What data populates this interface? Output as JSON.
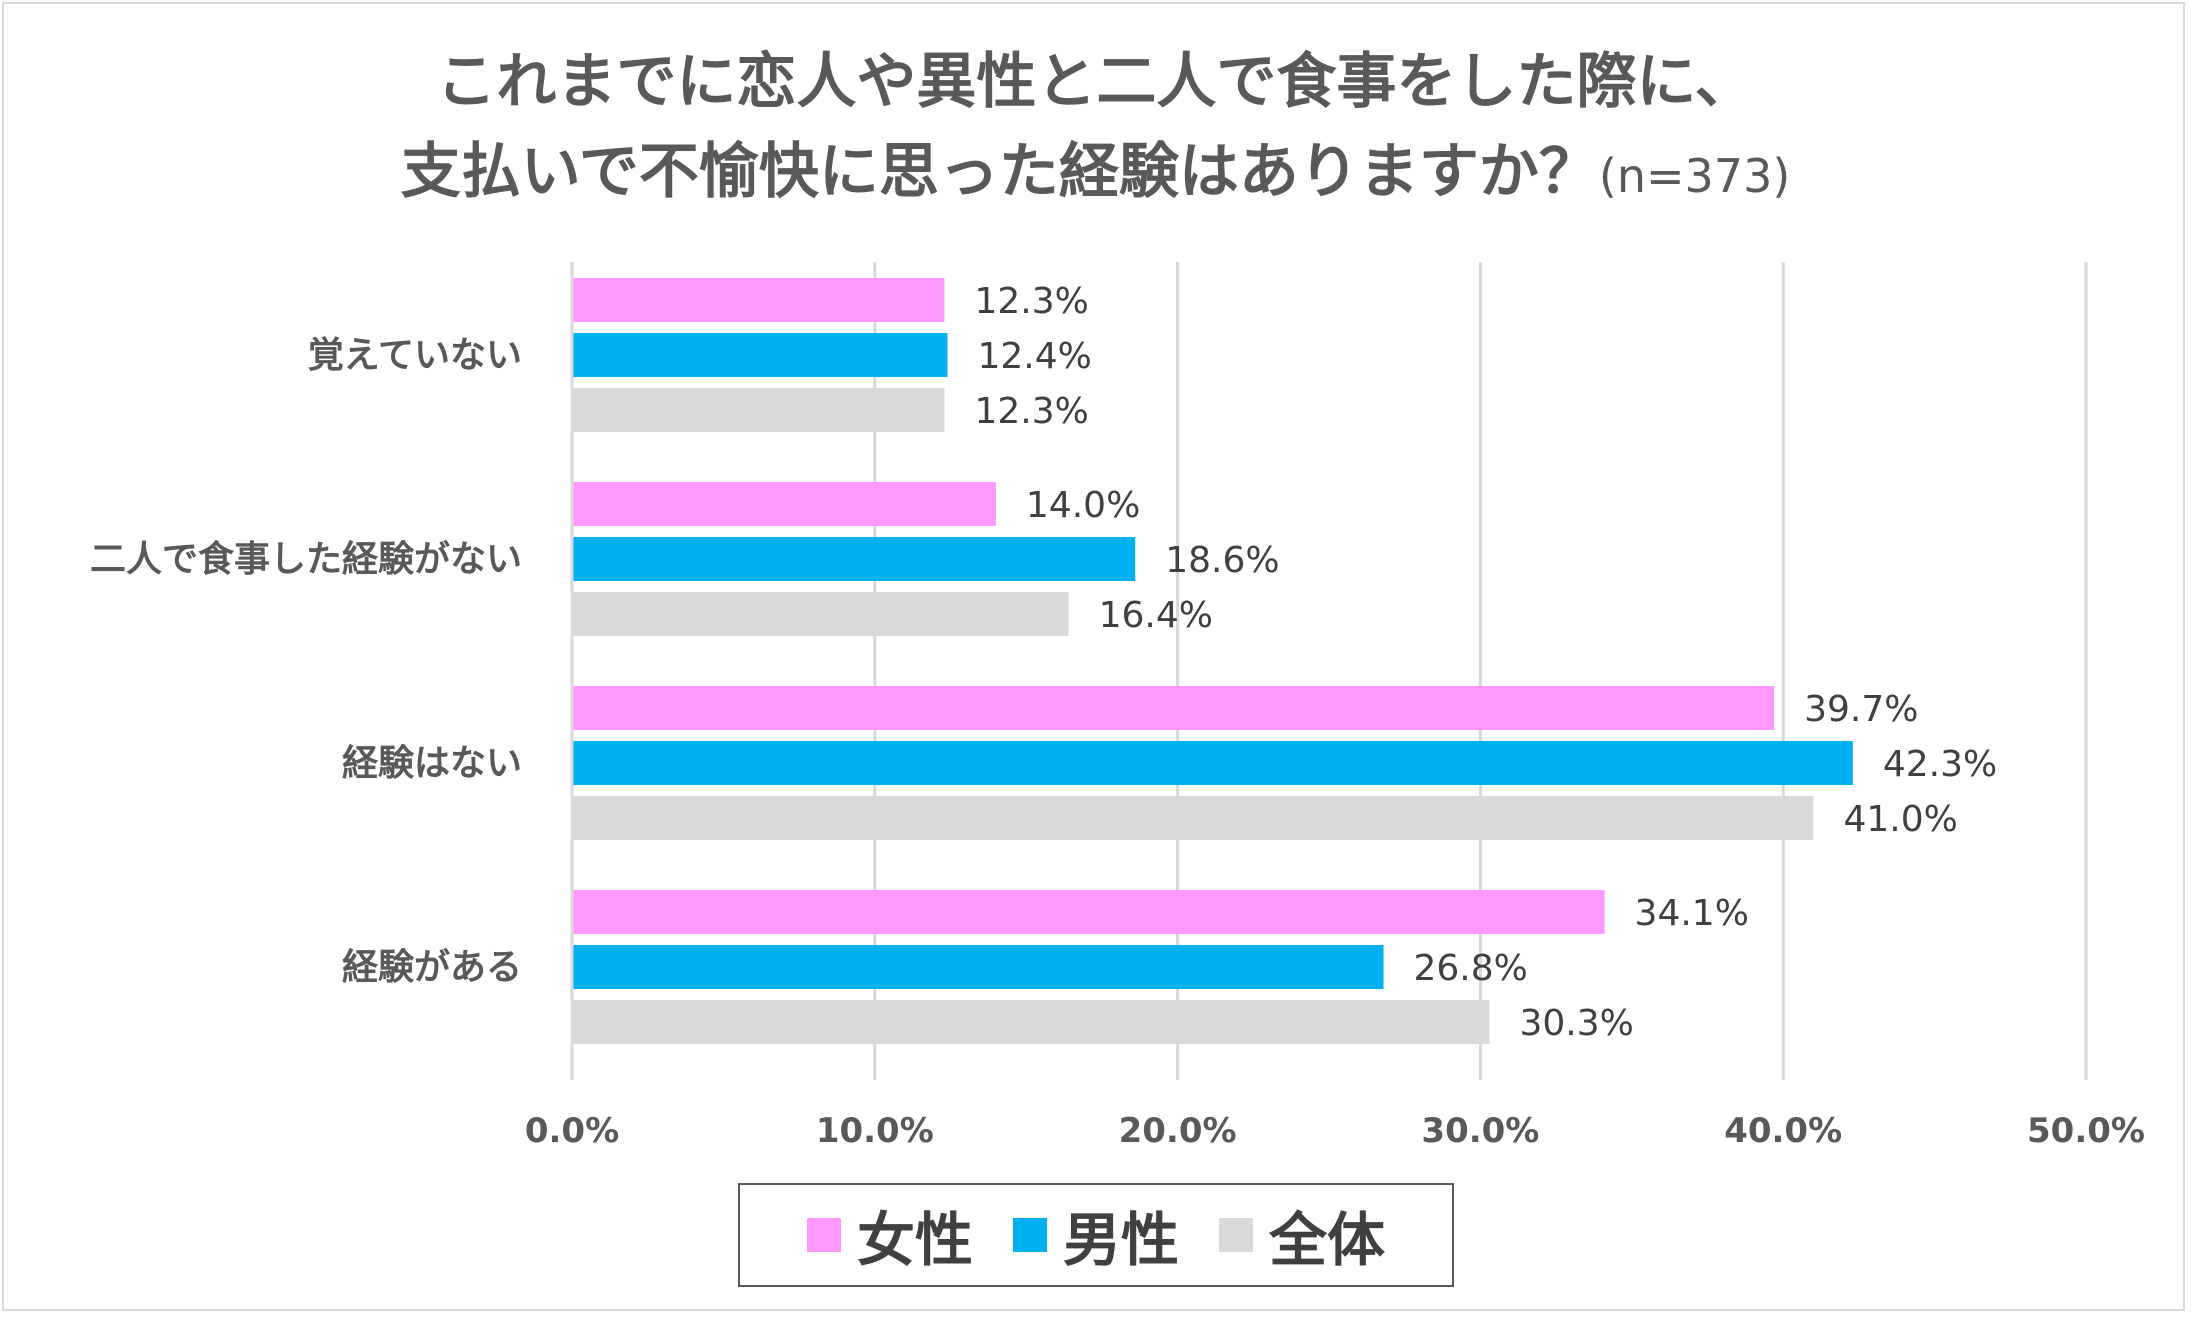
{
  "title": {
    "line1": "これまでに恋人や異性と二人で食事をした際に、",
    "line2": "支払いで不愉快に思った経験はありますか？",
    "n_label": "(n=373)"
  },
  "chart_data": {
    "type": "bar",
    "orientation": "horizontal",
    "categories": [
      "覚えていない",
      "二人で食事した経験がない",
      "経験はない",
      "経験がある"
    ],
    "series": [
      {
        "name": "女性",
        "color": "#ff99ff",
        "values": [
          12.3,
          14.0,
          39.7,
          34.1
        ]
      },
      {
        "name": "男性",
        "color": "#00b0f0",
        "values": [
          12.4,
          18.6,
          42.3,
          26.8
        ]
      },
      {
        "name": "全体",
        "color": "#d9d9d9",
        "values": [
          12.3,
          16.4,
          41.0,
          30.3
        ]
      }
    ],
    "xlim": [
      0,
      50
    ],
    "xticks": [
      0,
      10,
      20,
      30,
      40,
      50
    ],
    "xtick_labels": [
      "0.0%",
      "10.0%",
      "20.0%",
      "30.0%",
      "40.0%",
      "50.0%"
    ],
    "value_suffix": "%",
    "grid": "vertical",
    "legend": "bottom"
  }
}
